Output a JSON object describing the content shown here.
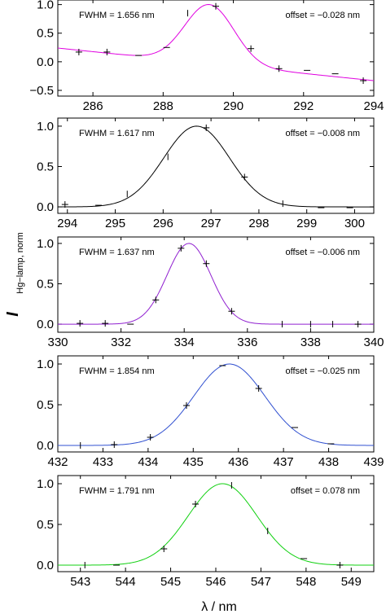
{
  "figure": {
    "ylabel_main": "I",
    "ylabel_sub": "Hg−lamp, norm",
    "xlabel": "λ / nm"
  },
  "chart_data": [
    {
      "type": "line",
      "color": "#e000e0",
      "xlim": [
        285.0,
        294.0
      ],
      "ylim": [
        -0.6,
        1.08
      ],
      "xticks": [
        286,
        288,
        290,
        292,
        294
      ],
      "yticks": [
        -0.5,
        0.0,
        0.5,
        1.0
      ],
      "ytick_labels": [
        "−0.5",
        "0.0",
        "0.5",
        "1.0"
      ],
      "fwhm_text": "FWHM = 1.656 nm",
      "offset_text": "offset = −0.028 nm",
      "fit": {
        "center": 289.32,
        "fwhm": 1.656,
        "baseline_start": 0.24,
        "baseline_end": -0.33
      },
      "points": [
        {
          "x": 285.6,
          "y": 0.17,
          "marker": "plus"
        },
        {
          "x": 286.4,
          "y": 0.17,
          "marker": "plus"
        },
        {
          "x": 287.3,
          "y": 0.11,
          "marker": "dash"
        },
        {
          "x": 288.1,
          "y": 0.25,
          "marker": "dash"
        },
        {
          "x": 288.7,
          "y": 0.85,
          "marker": "tick"
        },
        {
          "x": 289.5,
          "y": 0.97,
          "marker": "plus"
        },
        {
          "x": 290.5,
          "y": 0.23,
          "marker": "plus"
        },
        {
          "x": 291.3,
          "y": -0.12,
          "marker": "plus"
        },
        {
          "x": 292.1,
          "y": -0.15,
          "marker": "dash"
        },
        {
          "x": 292.9,
          "y": -0.21,
          "marker": "dash"
        },
        {
          "x": 293.7,
          "y": -0.33,
          "marker": "plus"
        }
      ]
    },
    {
      "type": "line",
      "color": "#000000",
      "xlim": [
        293.8,
        300.4
      ],
      "ylim": [
        -0.08,
        1.1
      ],
      "xticks": [
        294,
        295,
        296,
        297,
        298,
        299,
        300
      ],
      "yticks": [
        0.0,
        0.5,
        1.0
      ],
      "ytick_labels": [
        "0.0",
        "0.5",
        "1.0"
      ],
      "fwhm_text": "FWHM = 1.617 nm",
      "offset_text": "offset = −0.008 nm",
      "fit": {
        "center": 296.7,
        "fwhm": 1.617,
        "baseline_start": 0.0,
        "baseline_end": 0.0
      },
      "points": [
        {
          "x": 293.95,
          "y": 0.03,
          "marker": "plus"
        },
        {
          "x": 294.65,
          "y": 0.02,
          "marker": "dash"
        },
        {
          "x": 295.25,
          "y": 0.16,
          "marker": "tick"
        },
        {
          "x": 296.1,
          "y": 0.62,
          "marker": "tick"
        },
        {
          "x": 296.9,
          "y": 0.98,
          "marker": "plus"
        },
        {
          "x": 297.7,
          "y": 0.37,
          "marker": "plus"
        },
        {
          "x": 298.5,
          "y": 0.04,
          "marker": "tick"
        },
        {
          "x": 299.3,
          "y": -0.01,
          "marker": "dash"
        },
        {
          "x": 299.9,
          "y": -0.01,
          "marker": "dash"
        }
      ]
    },
    {
      "type": "line",
      "color": "#9020d0",
      "xlim": [
        330.0,
        340.0
      ],
      "ylim": [
        -0.1,
        1.08
      ],
      "xticks": [
        330,
        332,
        334,
        336,
        338,
        340
      ],
      "yticks": [
        0.0,
        0.5,
        1.0
      ],
      "ytick_labels": [
        "0.0",
        "0.5",
        "1.0"
      ],
      "fwhm_text": "FWHM = 1.637 nm",
      "offset_text": "offset = −0.006 nm",
      "fit": {
        "center": 334.15,
        "fwhm": 1.637,
        "baseline_start": 0.0,
        "baseline_end": 0.0
      },
      "points": [
        {
          "x": 330.7,
          "y": 0.01,
          "marker": "plus"
        },
        {
          "x": 331.5,
          "y": 0.01,
          "marker": "plus"
        },
        {
          "x": 332.3,
          "y": 0.0,
          "marker": "dash"
        },
        {
          "x": 333.1,
          "y": 0.3,
          "marker": "plus"
        },
        {
          "x": 333.9,
          "y": 0.94,
          "marker": "plus"
        },
        {
          "x": 334.7,
          "y": 0.75,
          "marker": "plus"
        },
        {
          "x": 335.5,
          "y": 0.16,
          "marker": "plus"
        },
        {
          "x": 337.1,
          "y": 0.0,
          "marker": "tick"
        },
        {
          "x": 338.0,
          "y": 0.0,
          "marker": "tick"
        },
        {
          "x": 338.7,
          "y": 0.0,
          "marker": "tick"
        },
        {
          "x": 339.5,
          "y": 0.0,
          "marker": "plus"
        }
      ]
    },
    {
      "type": "line",
      "color": "#3050d0",
      "xlim": [
        432.0,
        439.0
      ],
      "ylim": [
        -0.08,
        1.1
      ],
      "xticks": [
        432,
        433,
        434,
        435,
        436,
        437,
        438,
        439
      ],
      "yticks": [
        0.0,
        0.5,
        1.0
      ],
      "ytick_labels": [
        "0.0",
        "0.5",
        "1.0"
      ],
      "fwhm_text": "FWHM = 1.854 nm",
      "offset_text": "offset = −0.025 nm",
      "fit": {
        "center": 435.8,
        "fwhm": 1.854,
        "baseline_start": 0.0,
        "baseline_end": 0.0
      },
      "points": [
        {
          "x": 432.5,
          "y": 0.0,
          "marker": "tick"
        },
        {
          "x": 433.25,
          "y": 0.01,
          "marker": "plus"
        },
        {
          "x": 434.05,
          "y": 0.1,
          "marker": "plus"
        },
        {
          "x": 434.85,
          "y": 0.49,
          "marker": "plus"
        },
        {
          "x": 435.65,
          "y": 0.98,
          "marker": "dash"
        },
        {
          "x": 436.45,
          "y": 0.7,
          "marker": "plus"
        },
        {
          "x": 437.25,
          "y": 0.22,
          "marker": "dash"
        },
        {
          "x": 438.05,
          "y": 0.02,
          "marker": "dash"
        }
      ]
    },
    {
      "type": "line",
      "color": "#10d010",
      "xlim": [
        542.5,
        549.5
      ],
      "ylim": [
        -0.08,
        1.1
      ],
      "xticks": [
        543,
        544,
        545,
        546,
        547,
        548,
        549
      ],
      "yticks": [
        0.0,
        0.5,
        1.0
      ],
      "ytick_labels": [
        "0.0",
        "0.5",
        "1.0"
      ],
      "fwhm_text": "FWHM = 1.791 nm",
      "offset_text": "offset =  0.078 nm",
      "fit": {
        "center": 546.15,
        "fwhm": 1.791,
        "baseline_start": 0.0,
        "baseline_end": 0.0
      },
      "points": [
        {
          "x": 543.1,
          "y": 0.0,
          "marker": "tick"
        },
        {
          "x": 543.8,
          "y": 0.0,
          "marker": "dash"
        },
        {
          "x": 544.85,
          "y": 0.2,
          "marker": "plus"
        },
        {
          "x": 545.55,
          "y": 0.75,
          "marker": "plus"
        },
        {
          "x": 546.35,
          "y": 0.98,
          "marker": "tick"
        },
        {
          "x": 547.15,
          "y": 0.42,
          "marker": "tick"
        },
        {
          "x": 547.95,
          "y": 0.08,
          "marker": "dash"
        },
        {
          "x": 548.75,
          "y": 0.0,
          "marker": "plus"
        }
      ]
    }
  ]
}
